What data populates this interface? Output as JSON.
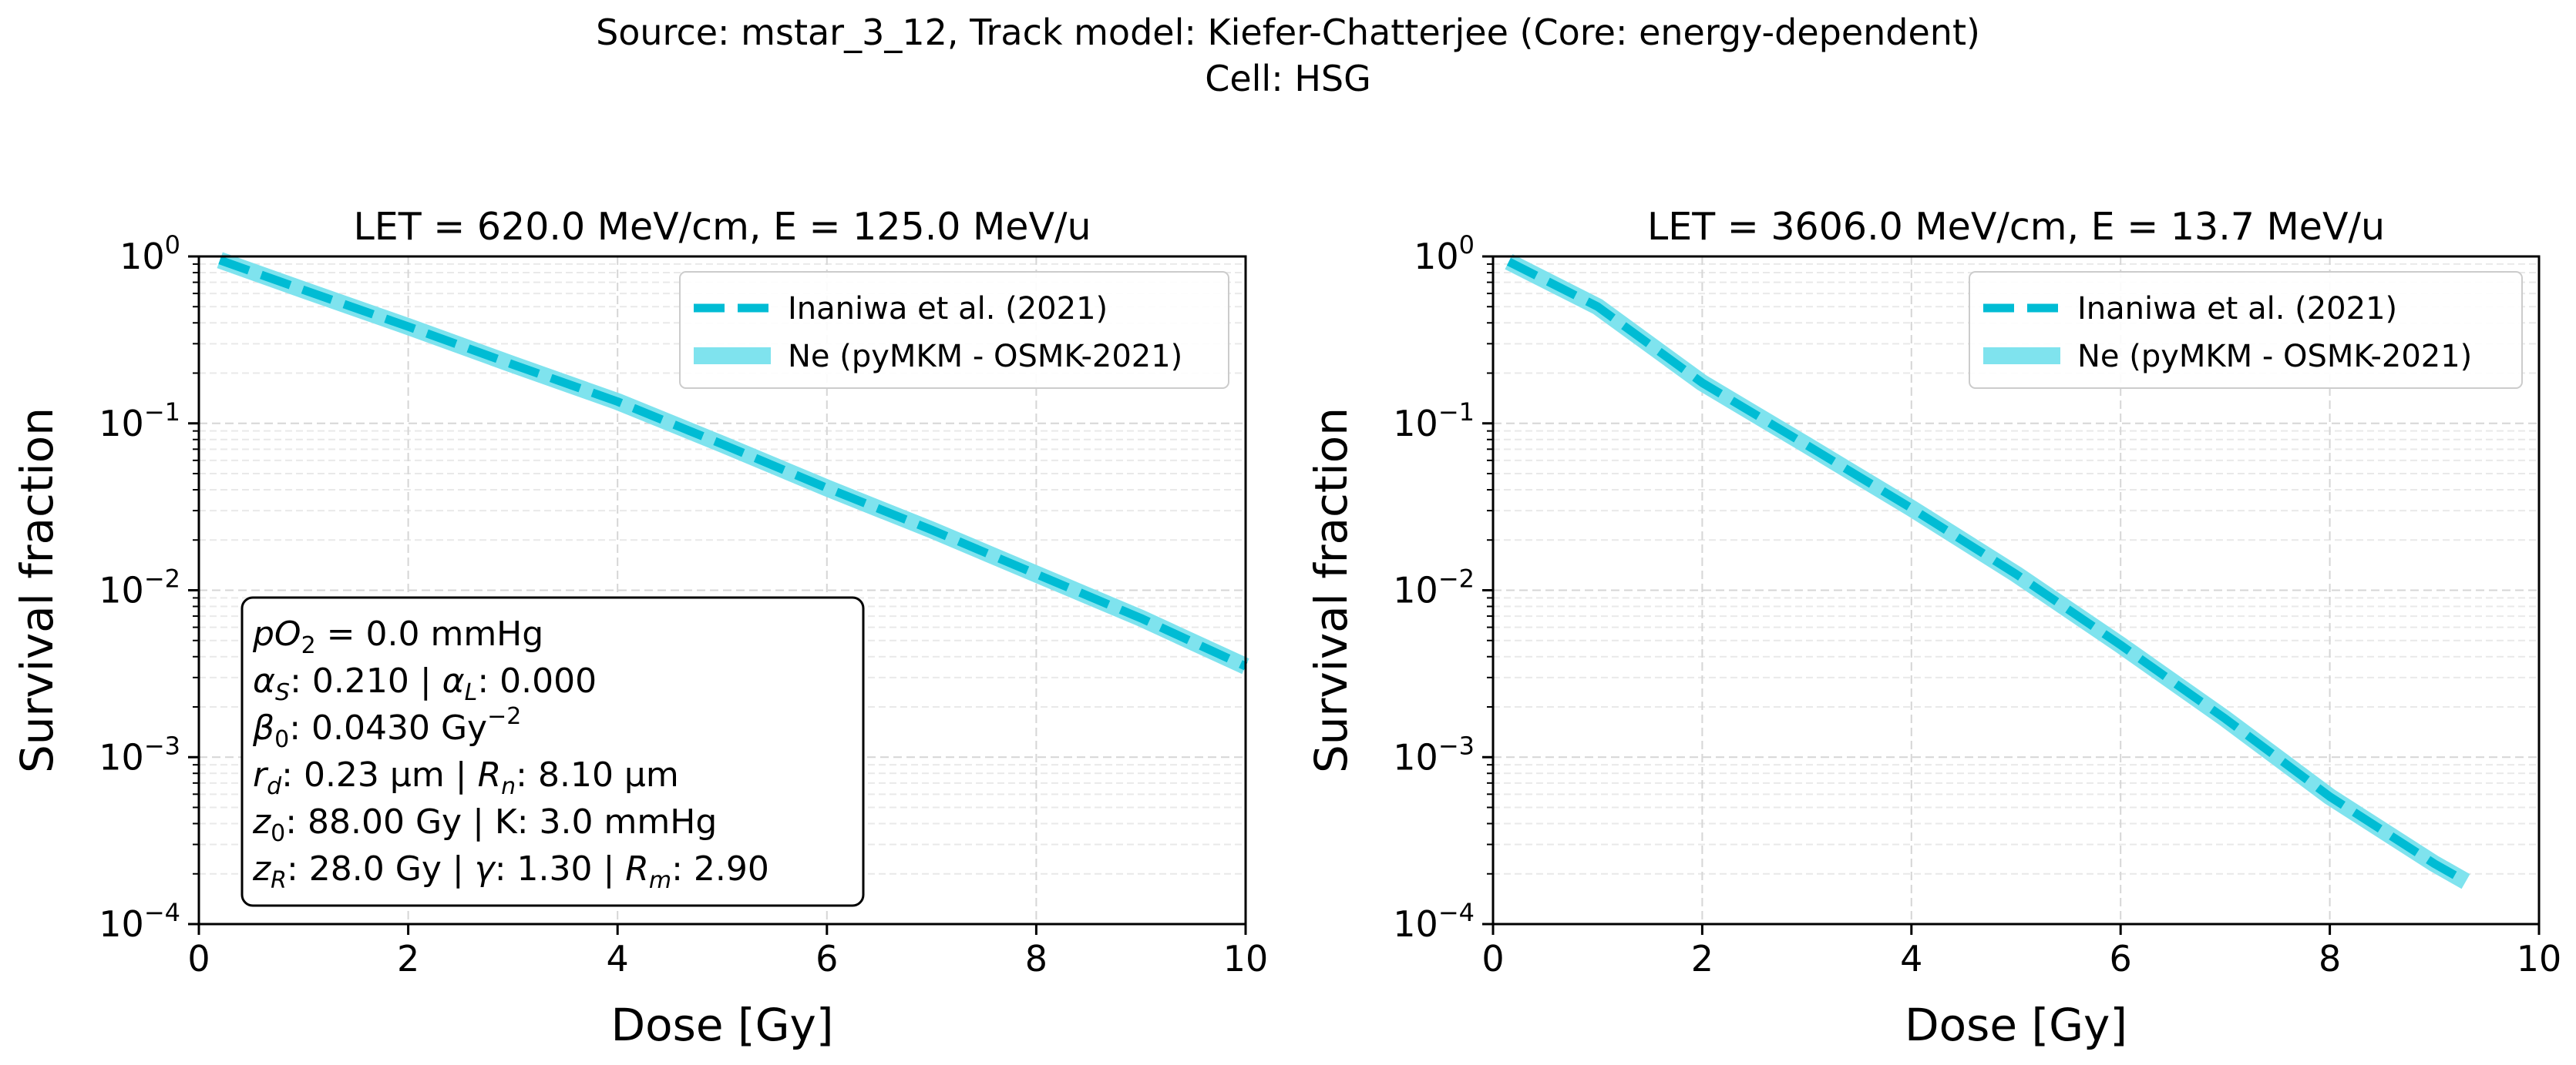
{
  "figure": {
    "title_line1": "Source: mstar_3_12, Track model: Kiefer-Chatterjee (Core: energy-dependent)",
    "title_line2": "Cell: HSG"
  },
  "chart_data": [
    {
      "type": "line",
      "title": "LET = 620.0 MeV/cm, E = 125.0 MeV/u",
      "xlabel": "Dose [Gy]",
      "ylabel": "Survival fraction",
      "xlim": [
        0,
        10
      ],
      "ylim": [
        0.0001,
        1
      ],
      "yscale": "log",
      "xticks": [
        0,
        2,
        4,
        6,
        8,
        10
      ],
      "yticks": [
        {
          "value": 1,
          "base": "10",
          "exp": "0"
        },
        {
          "value": 0.1,
          "base": "10",
          "exp": "−1"
        },
        {
          "value": 0.01,
          "base": "10",
          "exp": "−2"
        },
        {
          "value": 0.001,
          "base": "10",
          "exp": "−3"
        },
        {
          "value": 0.0001,
          "base": "10",
          "exp": "−4"
        }
      ],
      "grid": true,
      "legend_position": "top-right",
      "series": [
        {
          "name": "Inaniwa et al. (2021)",
          "style": "dashed",
          "color": "#00bcd4",
          "x": [
            0.2,
            1,
            2,
            3,
            4,
            5,
            6,
            7,
            8,
            9,
            10
          ],
          "y": [
            0.95,
            0.63,
            0.38,
            0.225,
            0.135,
            0.075,
            0.041,
            0.023,
            0.0125,
            0.0068,
            0.0035
          ]
        },
        {
          "name": "Ne (pyMKM - OSMK-2021)",
          "style": "solid",
          "color": "#7fe3ee",
          "x": [
            0.2,
            1,
            2,
            3,
            4,
            5,
            6,
            7,
            8,
            9,
            10
          ],
          "y": [
            0.95,
            0.63,
            0.38,
            0.225,
            0.135,
            0.075,
            0.041,
            0.023,
            0.0125,
            0.0068,
            0.0035
          ]
        }
      ],
      "annotation": {
        "line1": {
          "parts": [
            {
              "t": "pO",
              "i": true
            },
            {
              "t": "2",
              "sub": true
            },
            {
              "t": " = 0.0 mmHg"
            }
          ]
        },
        "line2": {
          "parts": [
            {
              "t": "α",
              "i": true
            },
            {
              "t": "S",
              "sub": true,
              "i": true
            },
            {
              "t": ": 0.210 | "
            },
            {
              "t": "α",
              "i": true
            },
            {
              "t": "L",
              "sub": true,
              "i": true
            },
            {
              "t": ": 0.000"
            }
          ]
        },
        "line3": {
          "parts": [
            {
              "t": "β",
              "i": true
            },
            {
              "t": "0",
              "sub": true
            },
            {
              "t": ": 0.0430 Gy"
            },
            {
              "t": "−2",
              "sup": true
            }
          ]
        },
        "line4": {
          "parts": [
            {
              "t": "r",
              "i": true
            },
            {
              "t": "d",
              "sub": true,
              "i": true
            },
            {
              "t": ": 0.23 μm | "
            },
            {
              "t": "R",
              "i": true
            },
            {
              "t": "n",
              "sub": true,
              "i": true
            },
            {
              "t": ": 8.10 μm"
            }
          ]
        },
        "line5": {
          "parts": [
            {
              "t": "z",
              "i": true
            },
            {
              "t": "0",
              "sub": true
            },
            {
              "t": ": 88.00 Gy | K: 3.0 mmHg"
            }
          ]
        },
        "line6": {
          "parts": [
            {
              "t": "z",
              "i": true
            },
            {
              "t": "R",
              "sub": true,
              "i": true
            },
            {
              "t": ": 28.0 Gy | "
            },
            {
              "t": "γ",
              "i": true
            },
            {
              "t": ": 1.30 | "
            },
            {
              "t": "R",
              "i": true
            },
            {
              "t": "m",
              "sub": true,
              "i": true
            },
            {
              "t": ": 2.90"
            }
          ]
        }
      }
    },
    {
      "type": "line",
      "title": "LET = 3606.0 MeV/cm, E = 13.7 MeV/u",
      "xlabel": "Dose [Gy]",
      "ylabel": "Survival fraction",
      "xlim": [
        0,
        10
      ],
      "ylim": [
        0.0001,
        1
      ],
      "yscale": "log",
      "xticks": [
        0,
        2,
        4,
        6,
        8,
        10
      ],
      "yticks": [
        {
          "value": 1,
          "base": "10",
          "exp": "0"
        },
        {
          "value": 0.1,
          "base": "10",
          "exp": "−1"
        },
        {
          "value": 0.01,
          "base": "10",
          "exp": "−2"
        },
        {
          "value": 0.001,
          "base": "10",
          "exp": "−3"
        },
        {
          "value": 0.0001,
          "base": "10",
          "exp": "−4"
        }
      ],
      "grid": true,
      "legend_position": "top-right",
      "series": [
        {
          "name": "Inaniwa et al. (2021)",
          "style": "dashed",
          "color": "#00bcd4",
          "x": [
            0.15,
            1,
            2,
            3,
            4,
            5,
            6,
            7,
            8,
            9,
            9.3
          ],
          "y": [
            0.93,
            0.5,
            0.175,
            0.074,
            0.031,
            0.0125,
            0.0047,
            0.0017,
            0.00058,
            0.00023,
            0.00018
          ]
        },
        {
          "name": "Ne (pyMKM - OSMK-2021)",
          "style": "solid",
          "color": "#7fe3ee",
          "x": [
            0.15,
            1,
            2,
            3,
            4,
            5,
            6,
            7,
            8,
            9,
            9.3
          ],
          "y": [
            0.93,
            0.5,
            0.175,
            0.074,
            0.031,
            0.0125,
            0.0047,
            0.0017,
            0.00058,
            0.00023,
            0.00018
          ]
        }
      ]
    }
  ]
}
